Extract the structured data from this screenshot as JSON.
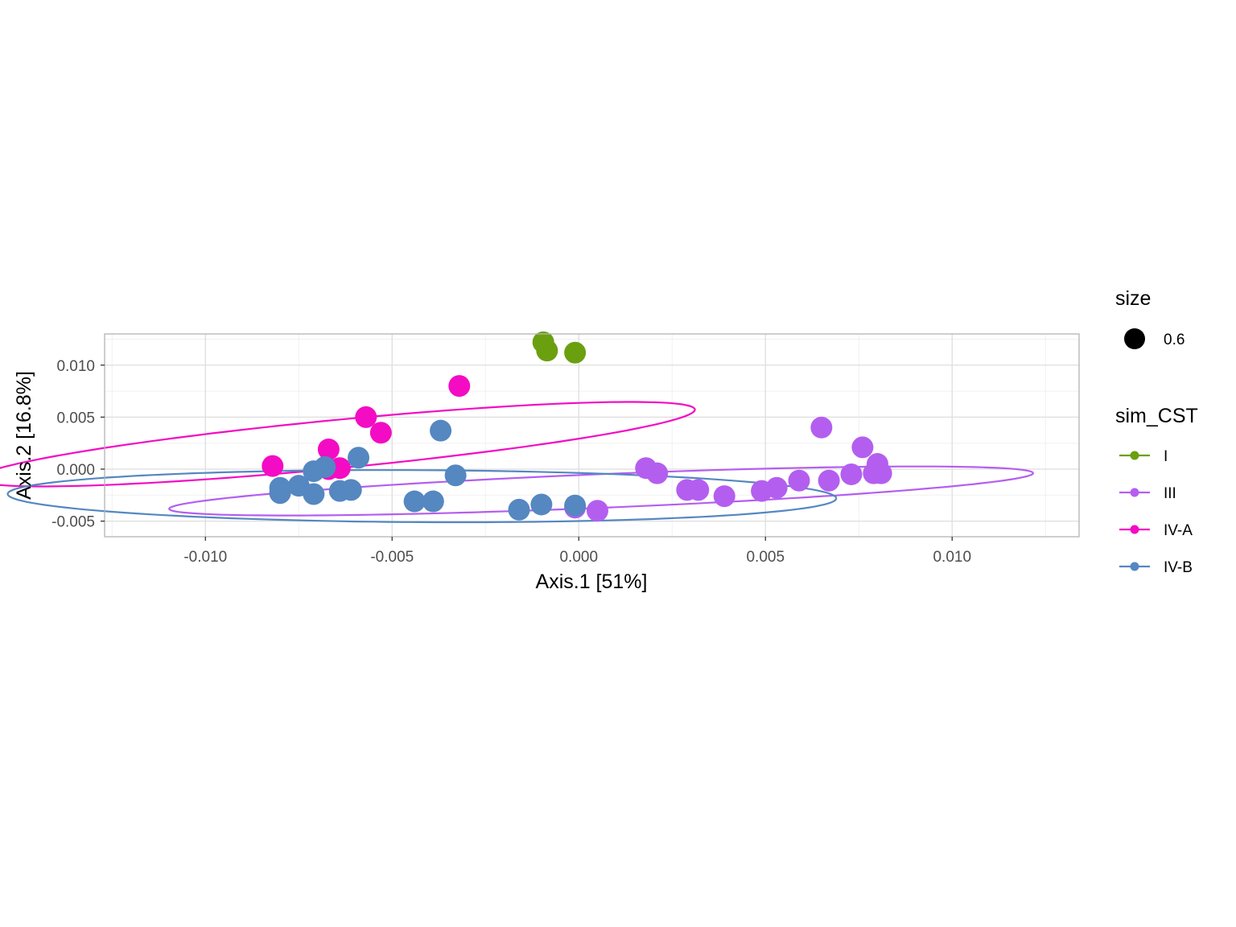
{
  "chart_data": {
    "type": "scatter",
    "title": "",
    "xlabel": "Axis.1   [51%]",
    "ylabel": "Axis.2   [16.8%]",
    "xlim": [
      -0.0127,
      0.0134
    ],
    "ylim": [
      -0.0065,
      0.013
    ],
    "x_ticks": [
      -0.01,
      -0.005,
      0.0,
      0.005,
      0.01
    ],
    "x_tick_labels": [
      "-0.010",
      "-0.005",
      "0.000",
      "0.005",
      "0.010"
    ],
    "y_ticks": [
      -0.005,
      0.0,
      0.005,
      0.01
    ],
    "y_tick_labels": [
      "-0.005",
      "0.000",
      "0.005",
      "0.010"
    ],
    "grid": true,
    "legend_position": "right",
    "size_legend": {
      "title": "size",
      "label": "0.6"
    },
    "color_legend_title": "sim_CST",
    "series": [
      {
        "name": "I",
        "color": "#6aa00f",
        "points": [
          [
            -0.00095,
            0.0122
          ],
          [
            -0.00085,
            0.0114
          ],
          [
            -0.0001,
            0.0112
          ]
        ],
        "ellipse": null
      },
      {
        "name": "III",
        "color": "#b45ef0",
        "points": [
          [
            0.0018,
            0.0001
          ],
          [
            0.0021,
            -0.0004
          ],
          [
            0.0029,
            -0.002
          ],
          [
            0.0032,
            -0.002
          ],
          [
            0.0039,
            -0.0026
          ],
          [
            0.0049,
            -0.0021
          ],
          [
            0.0053,
            -0.0018
          ],
          [
            0.0059,
            -0.0011
          ],
          [
            0.0067,
            -0.0011
          ],
          [
            0.0073,
            -0.0005
          ],
          [
            0.0065,
            0.004
          ],
          [
            0.0076,
            0.0021
          ],
          [
            0.008,
            0.0005
          ],
          [
            0.0081,
            -0.0004
          ],
          [
            0.0079,
            -0.0004
          ],
          [
            -0.0001,
            -0.0037
          ],
          [
            0.0005,
            -0.004
          ]
        ],
        "ellipse": {
          "cx": 0.0006,
          "cy": -0.0021,
          "rx": 0.0117,
          "ry": 0.0016,
          "angle_data": 0.15
        }
      },
      {
        "name": "IV-A",
        "color": "#f30cc4",
        "points": [
          [
            -0.0032,
            0.008
          ],
          [
            -0.0057,
            0.005
          ],
          [
            -0.0053,
            0.0035
          ],
          [
            -0.0067,
            0.0019
          ],
          [
            -0.0082,
            0.0003
          ],
          [
            -0.0064,
            0.0001
          ],
          [
            -0.0067,
            0.0
          ]
        ],
        "ellipse": {
          "cx": -0.0065,
          "cy": 0.0024,
          "rx": 0.0102,
          "ry": 0.0022,
          "angle_data": 0.35
        }
      },
      {
        "name": "IV-B",
        "color": "#5587c1",
        "points": [
          [
            -0.0037,
            0.0037
          ],
          [
            -0.0059,
            0.0011
          ],
          [
            -0.0068,
            0.0002
          ],
          [
            -0.0071,
            -0.0002
          ],
          [
            -0.0033,
            -0.0006
          ],
          [
            -0.0075,
            -0.0016
          ],
          [
            -0.008,
            -0.0018
          ],
          [
            -0.008,
            -0.0023
          ],
          [
            -0.0071,
            -0.0024
          ],
          [
            -0.0064,
            -0.0021
          ],
          [
            -0.0061,
            -0.002
          ],
          [
            -0.0044,
            -0.0031
          ],
          [
            -0.0039,
            -0.0031
          ],
          [
            -0.0016,
            -0.0039
          ],
          [
            -0.001,
            -0.0034
          ],
          [
            -0.0001,
            -0.0035
          ]
        ],
        "ellipse": {
          "cx": -0.0042,
          "cy": -0.0026,
          "rx": 0.0111,
          "ry": 0.0025,
          "angle_data": -0.02
        }
      }
    ]
  }
}
